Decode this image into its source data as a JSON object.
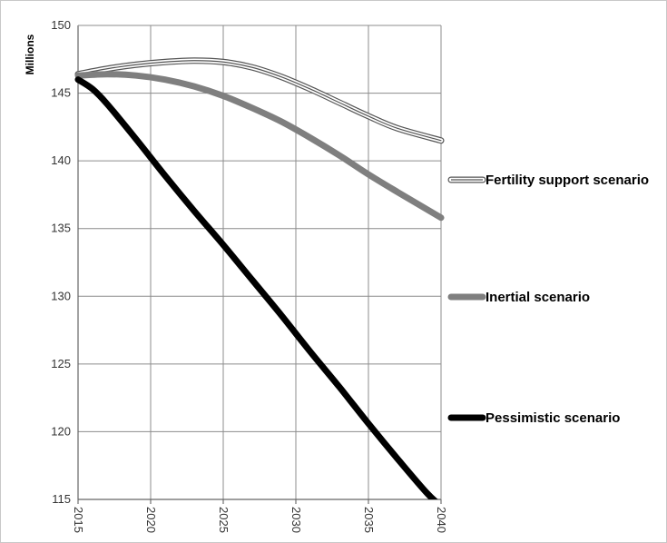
{
  "chart_data": {
    "type": "line",
    "ylabel": "Millions",
    "x_ticks": [
      "2015",
      "2020",
      "2025",
      "2030",
      "2035",
      "2040"
    ],
    "y_ticks": [
      "150",
      "145",
      "140",
      "135",
      "130",
      "125",
      "120",
      "115"
    ],
    "xlim": [
      2015,
      2040
    ],
    "ylim": [
      115,
      150
    ],
    "grid": "horizontal",
    "legend_position": "right",
    "series": [
      {
        "name": "Fertility support scenario",
        "style": "double-outline",
        "color": "#555555",
        "x": [
          2015,
          2017,
          2019,
          2021,
          2023,
          2025,
          2027,
          2029,
          2031,
          2033,
          2035,
          2037,
          2040
        ],
        "y": [
          146.4,
          146.8,
          147.1,
          147.3,
          147.4,
          147.3,
          146.9,
          146.2,
          145.3,
          144.3,
          143.3,
          142.4,
          141.5
        ]
      },
      {
        "name": "Inertial scenario",
        "style": "thick",
        "color": "#7f7f7f",
        "x": [
          2015,
          2017,
          2019,
          2021,
          2023,
          2025,
          2027,
          2029,
          2031,
          2033,
          2035,
          2037,
          2040
        ],
        "y": [
          146.3,
          146.4,
          146.3,
          146.0,
          145.5,
          144.8,
          143.9,
          142.9,
          141.7,
          140.4,
          139.0,
          137.7,
          135.8
        ]
      },
      {
        "name": "Pessimistic scenario",
        "style": "thick",
        "color": "#000000",
        "x": [
          2015,
          2016,
          2017,
          2019,
          2021,
          2023,
          2025,
          2027,
          2029,
          2031,
          2033,
          2035,
          2037,
          2039,
          2040
        ],
        "y": [
          146.0,
          145.3,
          144.2,
          141.6,
          138.9,
          136.3,
          133.8,
          131.2,
          128.6,
          125.9,
          123.3,
          120.6,
          118.0,
          115.5,
          114.5
        ]
      }
    ]
  }
}
